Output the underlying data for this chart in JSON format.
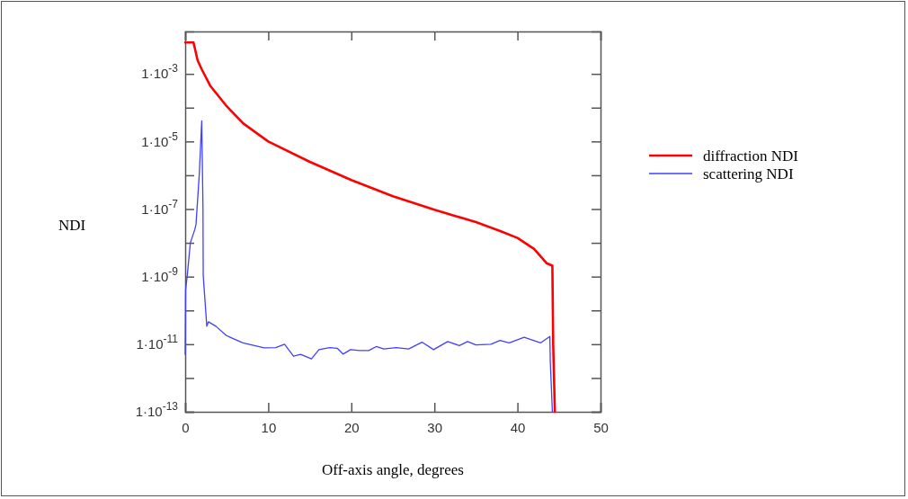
{
  "chart_data": {
    "type": "line",
    "xlabel": "Off-axis angle, degrees",
    "ylabel": "NDI",
    "log": "y",
    "legend": "right",
    "marker": "none",
    "line_style": "solid",
    "grid": false,
    "xlim": [
      0,
      50
    ],
    "xticks": [
      0,
      10,
      20,
      30,
      40,
      50
    ],
    "ylim": [
      1e-13,
      0.018
    ],
    "yticks": [
      {
        "value": 1e-13,
        "label": "1·10$^{-13}$"
      },
      {
        "value": 1e-12,
        "label": null
      },
      {
        "value": 1e-11,
        "label": "1·10$^{-11}$"
      },
      {
        "value": 1e-10,
        "label": null
      },
      {
        "value": 1e-09,
        "label": "1·10$^{-9}$"
      },
      {
        "value": 1e-08,
        "label": null
      },
      {
        "value": 1e-07,
        "label": "1·10$^{-7}$"
      },
      {
        "value": 1e-06,
        "label": null
      },
      {
        "value": 1e-05,
        "label": "1·10$^{-5}$"
      },
      {
        "value": 0.0001,
        "label": null
      },
      {
        "value": 0.001,
        "label": "1·10$^{-3}$"
      }
    ],
    "series": [
      {
        "name": "diffraction NDI",
        "color": "#ff0000",
        "x": [
          0,
          1.0,
          1.5,
          2,
          3,
          5,
          7,
          10,
          15,
          20,
          25,
          30,
          35,
          38,
          40,
          42,
          43.5,
          44.2,
          44.3,
          44.5
        ],
        "values": [
          0.0085,
          0.0085,
          0.0025,
          0.00135,
          0.00045,
          0.00011,
          3.4e-05,
          1e-05,
          2.5e-06,
          7.2e-07,
          2.4e-07,
          9.5e-08,
          4.1e-08,
          2.2e-08,
          1.4e-08,
          6.6e-09,
          2.5e-09,
          2.1e-09,
          1e-11,
          1e-13
        ]
      },
      {
        "name": "scattering NDI",
        "color": "#4040ff",
        "x": [
          0,
          0.05,
          0.25,
          0.62,
          1.16,
          1.3,
          1.7,
          1.99,
          2.14,
          2.17,
          2.6,
          2.79,
          3.7,
          4.96,
          6.96,
          9.5,
          10.9,
          11.96,
          13.04,
          13.9,
          15.2,
          16.1,
          17.4,
          18.3,
          19.0,
          19.9,
          21.0,
          22.1,
          23.0,
          23.9,
          25.4,
          26.9,
          28.5,
          29.9,
          31.6,
          33.0,
          34.0,
          35.0,
          36.8,
          37.9,
          39.0,
          40.8,
          42.8,
          43.9,
          43.95,
          44.2
        ],
        "values": [
          5e-12,
          4e-10,
          1.1e-09,
          1e-08,
          2.5e-08,
          3.5e-08,
          1.1e-06,
          4.1e-05,
          1.2e-07,
          1.1e-09,
          3.4e-11,
          4.6e-11,
          3.4e-11,
          1.8e-11,
          1.1e-11,
          7.8e-12,
          7.9e-12,
          1e-11,
          4.4e-12,
          5e-12,
          3.7e-12,
          6.9e-12,
          7.9e-12,
          7.6e-12,
          5.1e-12,
          6.9e-12,
          6.5e-12,
          6.5e-12,
          8.5e-12,
          7.2e-12,
          7.9e-12,
          7.2e-12,
          1.15e-11,
          6.9e-12,
          1.2e-11,
          9.1e-12,
          1.2e-11,
          9.5e-12,
          1e-11,
          1.3e-11,
          1.1e-11,
          1.6e-11,
          1.1e-11,
          1.7e-11,
          3.2e-12,
          1e-13
        ]
      }
    ]
  }
}
